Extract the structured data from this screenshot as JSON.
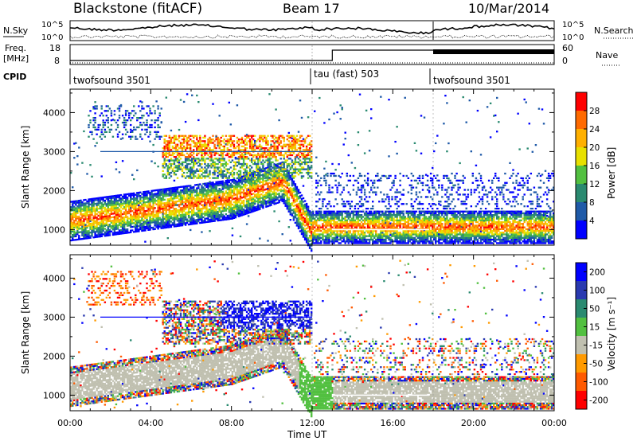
{
  "header": {
    "station": "Blackstone (fitACF)",
    "beam": "Beam 17",
    "date": "10/Mar/2014"
  },
  "noise_panel": {
    "left_label": "N.Sky",
    "left_ticks": [
      "10^5",
      "10^0"
    ],
    "right_label": "N.Search",
    "right_ticks": [
      "10^5",
      "10^0"
    ]
  },
  "freq_panel": {
    "left_label_1": "Freq.",
    "left_label_2": "[MHz]",
    "left_ticks": [
      "18",
      "8"
    ],
    "right_label": "Nave",
    "right_ticks": [
      "60",
      "0"
    ]
  },
  "cpid": {
    "label": "CPID",
    "segments": [
      {
        "name": "twofsound 3501",
        "start": "00:00"
      },
      {
        "name": "tau (fast) 503",
        "start": "12:00"
      },
      {
        "name": "twofsound 3501",
        "start": "18:00"
      }
    ]
  },
  "x_axis": {
    "title": "Time UT",
    "ticks": [
      "00:00",
      "04:00",
      "08:00",
      "12:00",
      "16:00",
      "20:00",
      "00:00"
    ]
  },
  "power_panel": {
    "ylabel": "Slant Range [km]",
    "yticks": [
      "4000",
      "3000",
      "2000",
      "1000"
    ],
    "colorbar_title": "Power [dB]",
    "colorbar_ticks": [
      "28",
      "24",
      "20",
      "16",
      "12",
      "8",
      "4"
    ],
    "colors": [
      "#ff0000",
      "#ff6a00",
      "#ffb000",
      "#e8e000",
      "#52c040",
      "#2a8a70",
      "#1f5aa8",
      "#0000ff"
    ]
  },
  "velocity_panel": {
    "ylabel": "Slant Range [km]",
    "yticks": [
      "4000",
      "3000",
      "2000",
      "1000"
    ],
    "colorbar_title": "Velocity [m s⁻¹]",
    "colorbar_ticks": [
      "200",
      "100",
      "50",
      "15",
      "-15",
      "-50",
      "-100",
      "-200"
    ],
    "colors": [
      "#0000ff",
      "#2a3ab0",
      "#2a8a70",
      "#52c040",
      "#c0c0b0",
      "#ff9a00",
      "#ff5a00",
      "#ff0000"
    ]
  },
  "chart_data": {
    "type": "heatmap",
    "x_range_hours": [
      0,
      24
    ],
    "y_range_km": [
      600,
      4600
    ],
    "power_range_db": [
      0,
      32
    ],
    "velocity_range_ms": [
      -250,
      250
    ],
    "description_free": true
  }
}
